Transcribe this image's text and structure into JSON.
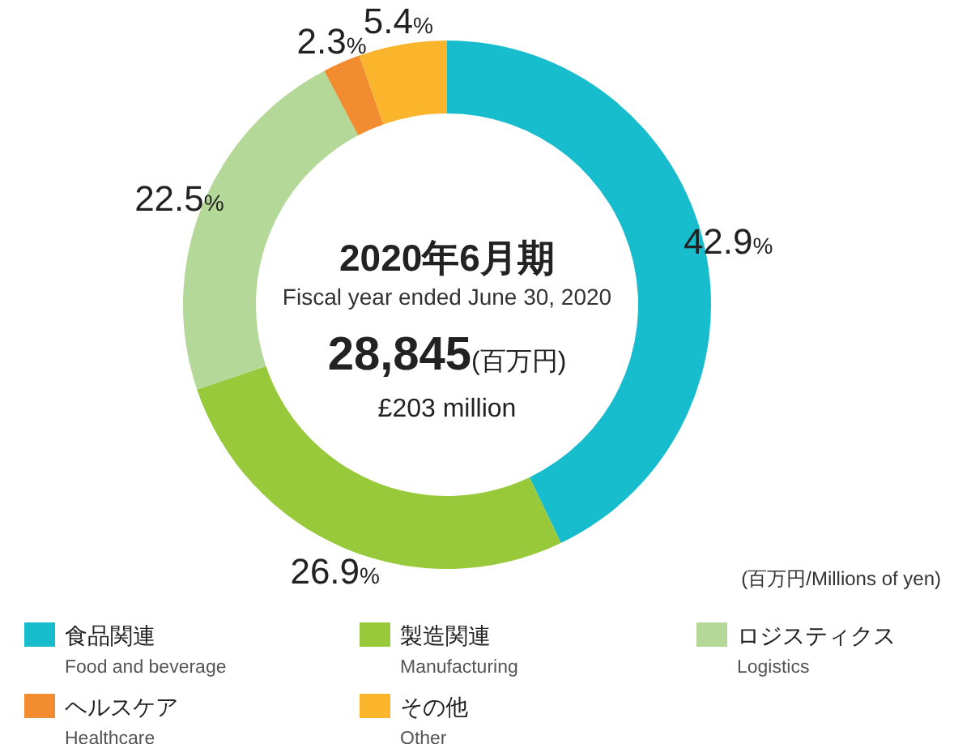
{
  "chart_data": {
    "type": "donut",
    "title": "2020年6月期",
    "subtitle": "Fiscal year ended June 30, 2020",
    "categories": [
      "食品関連\nFood and beverage",
      "製造関連\nManufacturing",
      "ロジスティクス\nLogistics",
      "ヘルスケア\nHealthcare",
      "その他\nOther"
    ],
    "values": [
      42.9,
      26.9,
      22.5,
      2.3,
      5.4
    ],
    "colors": [
      "#17bccd",
      "#97c93b",
      "#b3d897",
      "#f28c30",
      "#fbb52d"
    ],
    "value_labels": [
      "42.9%",
      "26.9%",
      "22.5%",
      "2.3%",
      "5.4%"
    ],
    "legend": "bottom",
    "annotations": [
      "28,845(百万円)",
      "£203 million",
      "(百万円/Millions of yen)"
    ]
  }
}
